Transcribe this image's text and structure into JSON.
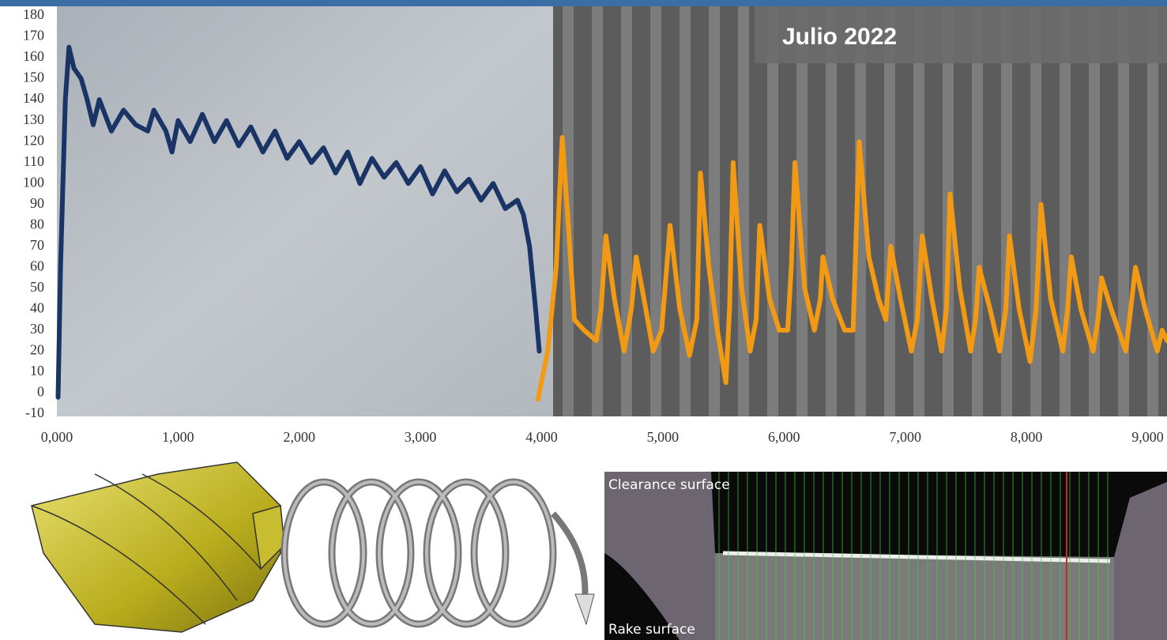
{
  "chart_data": {
    "type": "line",
    "xlim": [
      0,
      9.16
    ],
    "ylim": [
      -10,
      180
    ],
    "xticks": [
      {
        "value": 0,
        "label": "0,000"
      },
      {
        "value": 1,
        "label": "1,000"
      },
      {
        "value": 2,
        "label": "2,000"
      },
      {
        "value": 3,
        "label": "3,000"
      },
      {
        "value": 4,
        "label": "4,000"
      },
      {
        "value": 5,
        "label": "5,000"
      },
      {
        "value": 6,
        "label": "6,000"
      },
      {
        "value": 7,
        "label": "7,000"
      },
      {
        "value": 8,
        "label": "8,000"
      },
      {
        "value": 9,
        "label": "9,000"
      }
    ],
    "yticks": [
      -10,
      0,
      10,
      20,
      30,
      40,
      50,
      60,
      70,
      80,
      90,
      100,
      110,
      120,
      130,
      140,
      150,
      160,
      170,
      180
    ],
    "series": [
      {
        "color": "#1b3466",
        "x": [
          0.01,
          0.03,
          0.07,
          0.1,
          0.14,
          0.2,
          0.25,
          0.3,
          0.35,
          0.45,
          0.55,
          0.65,
          0.75,
          0.8,
          0.9,
          0.95,
          1.0,
          1.1,
          1.2,
          1.3,
          1.4,
          1.5,
          1.6,
          1.7,
          1.8,
          1.9,
          2.0,
          2.1,
          2.2,
          2.3,
          2.4,
          2.5,
          2.6,
          2.7,
          2.8,
          2.9,
          3.0,
          3.1,
          3.2,
          3.3,
          3.4,
          3.5,
          3.6,
          3.7,
          3.8,
          3.85,
          3.9,
          3.95,
          3.98
        ],
        "values": [
          -2,
          60,
          140,
          165,
          155,
          150,
          140,
          128,
          140,
          125,
          135,
          128,
          125,
          135,
          125,
          115,
          130,
          120,
          133,
          120,
          130,
          118,
          127,
          115,
          125,
          112,
          120,
          110,
          117,
          105,
          115,
          100,
          112,
          103,
          110,
          100,
          108,
          95,
          106,
          96,
          102,
          92,
          100,
          88,
          92,
          85,
          70,
          40,
          20
        ]
      },
      {
        "color": "#f29a13",
        "x": [
          3.97,
          4.05,
          4.12,
          4.17,
          4.22,
          4.27,
          4.35,
          4.45,
          4.49,
          4.53,
          4.6,
          4.68,
          4.74,
          4.78,
          4.86,
          4.92,
          4.99,
          5.06,
          5.14,
          5.22,
          5.28,
          5.31,
          5.38,
          5.45,
          5.52,
          5.55,
          5.58,
          5.65,
          5.72,
          5.77,
          5.8,
          5.88,
          5.96,
          6.03,
          6.06,
          6.09,
          6.17,
          6.25,
          6.3,
          6.32,
          6.4,
          6.5,
          6.57,
          6.62,
          6.7,
          6.78,
          6.84,
          6.88,
          6.96,
          7.05,
          7.1,
          7.14,
          7.22,
          7.3,
          7.34,
          7.37,
          7.45,
          7.54,
          7.58,
          7.61,
          7.7,
          7.78,
          7.83,
          7.86,
          7.94,
          8.03,
          8.08,
          8.12,
          8.2,
          8.3,
          8.34,
          8.37,
          8.45,
          8.55,
          8.59,
          8.62,
          8.7,
          8.82,
          8.86,
          8.9,
          8.98,
          9.08,
          9.12,
          9.16
        ],
        "values": [
          -3,
          20,
          60,
          122,
          80,
          35,
          30,
          25,
          40,
          75,
          45,
          20,
          40,
          65,
          40,
          20,
          30,
          80,
          40,
          18,
          35,
          105,
          60,
          30,
          5,
          40,
          110,
          50,
          20,
          35,
          80,
          45,
          30,
          30,
          60,
          110,
          50,
          30,
          45,
          65,
          45,
          30,
          30,
          120,
          65,
          45,
          35,
          70,
          45,
          20,
          35,
          75,
          45,
          20,
          40,
          95,
          50,
          20,
          35,
          60,
          40,
          20,
          40,
          75,
          40,
          15,
          40,
          90,
          45,
          20,
          40,
          65,
          40,
          20,
          35,
          55,
          40,
          20,
          40,
          60,
          40,
          20,
          30,
          25
        ]
      }
    ]
  },
  "banner": "Julio 2022",
  "micrograph": {
    "top_label": "Clearance surface",
    "bottom_label": "Rake surface"
  }
}
